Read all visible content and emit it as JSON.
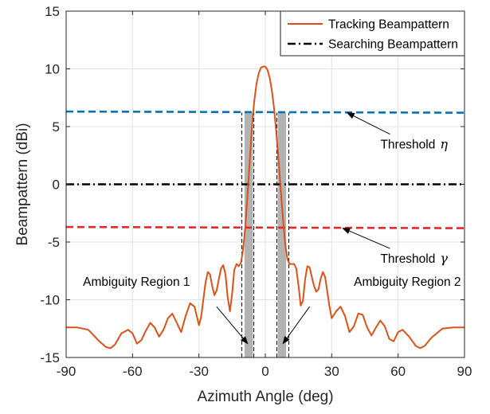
{
  "chart_data": {
    "type": "line",
    "xlabel": "Azimuth Angle (deg)",
    "ylabel": "Beampattern (dBi)",
    "xlim": [
      -90,
      90
    ],
    "ylim": [
      -15,
      15
    ],
    "xticks": [
      -90,
      -60,
      -30,
      0,
      30,
      60,
      90
    ],
    "yticks": [
      -15,
      -10,
      -5,
      0,
      5,
      10,
      15
    ],
    "grid": true,
    "legend": {
      "position": "top-right",
      "entries": [
        {
          "label": "Tracking Beampattern",
          "color": "#d95319",
          "style": "solid"
        },
        {
          "label": "Searching Beampattern",
          "color": "#000000",
          "style": "dash-dot"
        }
      ]
    },
    "series": [
      {
        "name": "Tracking Beampattern",
        "color": "#d95319",
        "x": [
          -90,
          -85,
          -80,
          -75,
          -72,
          -70,
          -68,
          -65,
          -62,
          -60,
          -58,
          -56,
          -54,
          -52,
          -50,
          -48,
          -46,
          -44,
          -42,
          -40,
          -38,
          -36,
          -34,
          -32,
          -30,
          -29,
          -28,
          -27,
          -26,
          -25,
          -24,
          -23,
          -22,
          -21,
          -20,
          -19,
          -18,
          -17,
          -16,
          -15,
          -14,
          -13,
          -12,
          -11,
          -10,
          -9,
          -8,
          -7,
          -6,
          -5,
          -4,
          -3,
          -2,
          -1,
          0,
          1,
          2,
          3,
          4,
          5,
          6,
          7,
          8,
          9,
          10,
          11,
          12,
          13,
          14,
          15,
          16,
          17,
          18,
          19,
          20,
          21,
          22,
          23,
          24,
          25,
          26,
          27,
          28,
          29,
          30,
          32,
          34,
          36,
          38,
          40,
          42,
          44,
          46,
          48,
          50,
          52,
          54,
          56,
          58,
          60,
          62,
          65,
          68,
          70,
          72,
          75,
          80,
          85,
          90
        ],
        "y": [
          -12.4,
          -12.4,
          -12.6,
          -13.6,
          -14.1,
          -14.2,
          -13.9,
          -12.9,
          -12.6,
          -12.9,
          -13.8,
          -13.5,
          -12.7,
          -12.0,
          -12.4,
          -13.2,
          -12.6,
          -11.6,
          -11.2,
          -12.0,
          -12.8,
          -11.4,
          -10.3,
          -10.6,
          -12.2,
          -11.5,
          -10.0,
          -8.5,
          -7.6,
          -7.8,
          -8.8,
          -9.6,
          -9.2,
          -8.2,
          -7.3,
          -7.0,
          -7.8,
          -9.8,
          -11.0,
          -9.5,
          -7.4,
          -6.9,
          -7.1,
          -6.8,
          -5.6,
          -3.6,
          -0.8,
          2.2,
          5.0,
          7.2,
          8.7,
          9.6,
          10.1,
          10.2,
          10.2,
          9.9,
          9.2,
          8.1,
          6.5,
          4.4,
          2.0,
          -0.5,
          -3.0,
          -5.2,
          -6.5,
          -6.9,
          -6.9,
          -6.9,
          -7.3,
          -8.8,
          -10.5,
          -10.1,
          -8.2,
          -7.1,
          -7.2,
          -8.0,
          -8.8,
          -9.3,
          -9.1,
          -8.2,
          -7.6,
          -8.0,
          -9.3,
          -10.6,
          -11.6,
          -11.0,
          -10.6,
          -11.4,
          -12.8,
          -12.3,
          -11.2,
          -11.3,
          -12.4,
          -13.1,
          -12.4,
          -11.8,
          -12.3,
          -13.4,
          -13.6,
          -12.8,
          -12.6,
          -13.2,
          -14.0,
          -14.2,
          -14.0,
          -13.3,
          -12.5,
          -12.4,
          -12.4
        ]
      },
      {
        "name": "Searching Beampattern",
        "color": "#000000",
        "x": [
          -90,
          90
        ],
        "y": [
          0,
          0
        ]
      },
      {
        "name": "",
        "color": "#0072bd",
        "x": [
          -90,
          90
        ],
        "y": [
          6.3,
          6.2
        ]
      },
      {
        "name": "",
        "color": "#e8262c",
        "x": [
          -90,
          90
        ],
        "y": [
          -3.7,
          -3.8
        ]
      }
    ],
    "shaded_regions": [
      {
        "x0": -9.4,
        "x1": -5.6,
        "color": "#b3b3b3"
      },
      {
        "x0": 5.6,
        "x1": 9.4,
        "color": "#b3b3b3"
      }
    ],
    "vertical_lines": [
      -10.6,
      -5.2,
      5.2,
      10.6
    ],
    "annotations": [
      {
        "text": "Threshold",
        "symbol": "η",
        "x": 52,
        "y": 3.1,
        "arrow_to": [
          37,
          6.2
        ]
      },
      {
        "text": "Threshold",
        "symbol": "γ",
        "x": 52,
        "y": -6.8,
        "arrow_to": [
          35,
          -3.8
        ]
      },
      {
        "text": "Ambiguity Region 1",
        "symbol": "",
        "x": -34,
        "y": -8.8,
        "arrow_to": [
          -8,
          -13.8
        ]
      },
      {
        "text": "Ambiguity Region 2",
        "symbol": "",
        "x": 40,
        "y": -8.8,
        "arrow_to": [
          8,
          -13.8
        ]
      }
    ]
  }
}
